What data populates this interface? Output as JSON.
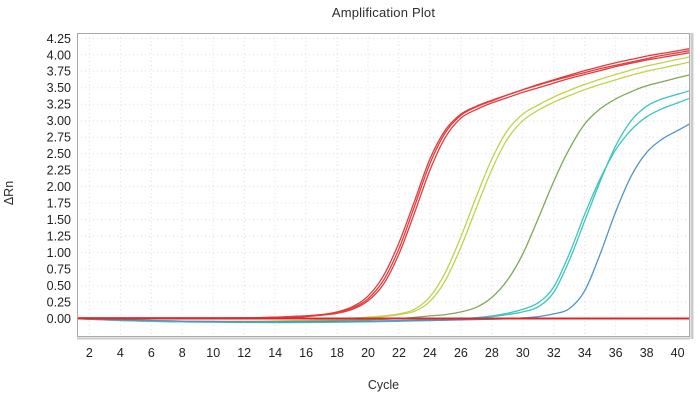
{
  "page": {
    "background": "#ffffff"
  },
  "chart_data": {
    "type": "line",
    "title": "Amplification Plot",
    "xlabel": "Cycle",
    "ylabel": "ΔRn",
    "xlim": [
      1.2,
      40.8
    ],
    "ylim": [
      -0.28,
      4.33
    ],
    "grid": "dotted",
    "legend": "none",
    "x_ticks": [
      2,
      4,
      6,
      8,
      10,
      12,
      14,
      16,
      18,
      20,
      22,
      24,
      26,
      28,
      30,
      32,
      34,
      36,
      38,
      40
    ],
    "y_tick_labels": [
      "4.25",
      "4.00",
      "3.75",
      "3.50",
      "3.25",
      "3.00",
      "2.75",
      "2.50",
      "2.25",
      "2.00",
      "1.75",
      "1.50",
      "1.25",
      "1.00",
      "0.75",
      "0.50",
      "0.25",
      "0.00"
    ],
    "colors": {
      "red": "#e23b3e",
      "lime": "#c0d34c",
      "olive": "#7ea856",
      "teal": "#3cc5c0",
      "blue": "#5093cc",
      "ntc_red": "#e0252a",
      "grid": "#dedede",
      "border": "#a8a8a8",
      "border_accent": "#cbcbcb",
      "text": "#222222"
    },
    "series": [
      {
        "name": "lime-replicate-1",
        "color_key": "lime",
        "width": 1.3,
        "points": [
          [
            1,
            0.0
          ],
          [
            4,
            -0.02
          ],
          [
            8,
            -0.04
          ],
          [
            12,
            -0.04
          ],
          [
            16,
            -0.03
          ],
          [
            18,
            -0.01
          ],
          [
            20,
            0.02
          ],
          [
            21,
            0.04
          ],
          [
            22,
            0.07
          ],
          [
            23,
            0.14
          ],
          [
            24,
            0.33
          ],
          [
            25,
            0.7
          ],
          [
            26,
            1.24
          ],
          [
            27,
            1.85
          ],
          [
            28,
            2.42
          ],
          [
            29,
            2.85
          ],
          [
            30,
            3.1
          ],
          [
            31,
            3.24
          ],
          [
            32,
            3.36
          ],
          [
            33,
            3.46
          ],
          [
            34,
            3.55
          ],
          [
            35,
            3.63
          ],
          [
            36,
            3.7
          ],
          [
            37,
            3.77
          ],
          [
            38,
            3.83
          ],
          [
            39,
            3.88
          ],
          [
            40,
            3.93
          ]
        ]
      },
      {
        "name": "lime-replicate-2",
        "color_key": "lime",
        "width": 1.3,
        "points": [
          [
            1,
            0.0
          ],
          [
            4,
            -0.02
          ],
          [
            8,
            -0.05
          ],
          [
            12,
            -0.05
          ],
          [
            16,
            -0.04
          ],
          [
            18,
            -0.02
          ],
          [
            20,
            0.01
          ],
          [
            21,
            0.03
          ],
          [
            22,
            0.06
          ],
          [
            23,
            0.11
          ],
          [
            24,
            0.26
          ],
          [
            25,
            0.58
          ],
          [
            26,
            1.08
          ],
          [
            27,
            1.68
          ],
          [
            28,
            2.26
          ],
          [
            29,
            2.72
          ],
          [
            30,
            3.0
          ],
          [
            31,
            3.16
          ],
          [
            32,
            3.28
          ],
          [
            33,
            3.38
          ],
          [
            34,
            3.47
          ],
          [
            35,
            3.55
          ],
          [
            36,
            3.62
          ],
          [
            37,
            3.69
          ],
          [
            38,
            3.75
          ],
          [
            39,
            3.8
          ],
          [
            40,
            3.85
          ]
        ]
      },
      {
        "name": "olive-replicate-1",
        "color_key": "olive",
        "width": 1.3,
        "points": [
          [
            1,
            0.0
          ],
          [
            4,
            -0.03
          ],
          [
            8,
            -0.05
          ],
          [
            12,
            -0.05
          ],
          [
            16,
            -0.04
          ],
          [
            20,
            -0.02
          ],
          [
            22,
            0.0
          ],
          [
            24,
            0.04
          ],
          [
            25,
            0.06
          ],
          [
            26,
            0.1
          ],
          [
            27,
            0.17
          ],
          [
            28,
            0.32
          ],
          [
            29,
            0.58
          ],
          [
            30,
            0.98
          ],
          [
            31,
            1.52
          ],
          [
            32,
            2.08
          ],
          [
            33,
            2.57
          ],
          [
            34,
            2.95
          ],
          [
            35,
            3.18
          ],
          [
            36,
            3.33
          ],
          [
            37,
            3.44
          ],
          [
            38,
            3.53
          ],
          [
            39,
            3.59
          ],
          [
            40,
            3.65
          ]
        ]
      },
      {
        "name": "teal-replicate-1",
        "color_key": "teal",
        "width": 1.3,
        "points": [
          [
            1,
            0.0
          ],
          [
            4,
            -0.02
          ],
          [
            8,
            -0.04
          ],
          [
            12,
            -0.05
          ],
          [
            16,
            -0.05
          ],
          [
            20,
            -0.04
          ],
          [
            24,
            -0.02
          ],
          [
            26,
            0.0
          ],
          [
            28,
            0.03
          ],
          [
            29,
            0.06
          ],
          [
            30,
            0.1
          ],
          [
            31,
            0.18
          ],
          [
            32,
            0.4
          ],
          [
            33,
            0.88
          ],
          [
            34,
            1.48
          ],
          [
            35,
            2.08
          ],
          [
            36,
            2.62
          ],
          [
            37,
            3.0
          ],
          [
            38,
            3.22
          ],
          [
            39,
            3.33
          ],
          [
            40,
            3.4
          ]
        ]
      },
      {
        "name": "teal-replicate-2",
        "color_key": "teal",
        "width": 1.3,
        "points": [
          [
            1,
            0.0
          ],
          [
            4,
            -0.03
          ],
          [
            8,
            -0.05
          ],
          [
            12,
            -0.06
          ],
          [
            16,
            -0.06
          ],
          [
            20,
            -0.05
          ],
          [
            24,
            -0.03
          ],
          [
            26,
            -0.01
          ],
          [
            28,
            0.04
          ],
          [
            29,
            0.08
          ],
          [
            30,
            0.14
          ],
          [
            31,
            0.24
          ],
          [
            32,
            0.48
          ],
          [
            33,
            0.98
          ],
          [
            34,
            1.58
          ],
          [
            35,
            2.12
          ],
          [
            36,
            2.56
          ],
          [
            37,
            2.86
          ],
          [
            38,
            3.06
          ],
          [
            39,
            3.18
          ],
          [
            40,
            3.27
          ]
        ]
      },
      {
        "name": "blue-replicate-1",
        "color_key": "blue",
        "width": 1.3,
        "points": [
          [
            1,
            0.0
          ],
          [
            4,
            -0.02
          ],
          [
            8,
            -0.04
          ],
          [
            12,
            -0.05
          ],
          [
            16,
            -0.05
          ],
          [
            20,
            -0.04
          ],
          [
            24,
            -0.03
          ],
          [
            28,
            -0.01
          ],
          [
            30,
            0.01
          ],
          [
            31,
            0.03
          ],
          [
            32,
            0.07
          ],
          [
            33,
            0.15
          ],
          [
            34,
            0.42
          ],
          [
            35,
            0.98
          ],
          [
            36,
            1.62
          ],
          [
            37,
            2.16
          ],
          [
            38,
            2.52
          ],
          [
            39,
            2.72
          ],
          [
            40,
            2.85
          ]
        ]
      },
      {
        "name": "red-replicate-1",
        "color_key": "red",
        "width": 1.3,
        "points": [
          [
            1,
            0.01
          ],
          [
            4,
            0.01
          ],
          [
            8,
            0.01
          ],
          [
            12,
            0.01
          ],
          [
            14,
            0.02
          ],
          [
            16,
            0.04
          ],
          [
            17,
            0.06
          ],
          [
            18,
            0.1
          ],
          [
            19,
            0.18
          ],
          [
            20,
            0.34
          ],
          [
            21,
            0.65
          ],
          [
            22,
            1.15
          ],
          [
            23,
            1.78
          ],
          [
            24,
            2.42
          ],
          [
            25,
            2.86
          ],
          [
            26,
            3.1
          ],
          [
            27,
            3.22
          ],
          [
            28,
            3.31
          ],
          [
            29,
            3.39
          ],
          [
            30,
            3.47
          ],
          [
            31,
            3.54
          ],
          [
            32,
            3.61
          ],
          [
            33,
            3.67
          ],
          [
            34,
            3.73
          ],
          [
            35,
            3.79
          ],
          [
            36,
            3.84
          ],
          [
            37,
            3.89
          ],
          [
            38,
            3.94
          ],
          [
            39,
            3.99
          ],
          [
            40,
            4.03
          ]
        ]
      },
      {
        "name": "red-replicate-2",
        "color_key": "red",
        "width": 1.3,
        "points": [
          [
            1,
            0.0
          ],
          [
            8,
            0.0
          ],
          [
            12,
            0.01
          ],
          [
            14,
            0.01
          ],
          [
            16,
            0.03
          ],
          [
            17,
            0.05
          ],
          [
            18,
            0.08
          ],
          [
            19,
            0.14
          ],
          [
            20,
            0.27
          ],
          [
            21,
            0.52
          ],
          [
            22,
            0.98
          ],
          [
            23,
            1.6
          ],
          [
            24,
            2.25
          ],
          [
            25,
            2.75
          ],
          [
            26,
            3.04
          ],
          [
            27,
            3.17
          ],
          [
            28,
            3.27
          ],
          [
            29,
            3.35
          ],
          [
            30,
            3.43
          ],
          [
            31,
            3.5
          ],
          [
            32,
            3.57
          ],
          [
            33,
            3.64
          ],
          [
            34,
            3.7
          ],
          [
            35,
            3.76
          ],
          [
            36,
            3.82
          ],
          [
            37,
            3.87
          ],
          [
            38,
            3.92
          ],
          [
            39,
            3.96
          ],
          [
            40,
            4.0
          ]
        ]
      },
      {
        "name": "red-replicate-3",
        "color_key": "red",
        "width": 1.3,
        "points": [
          [
            1,
            0.01
          ],
          [
            8,
            0.01
          ],
          [
            12,
            0.01
          ],
          [
            14,
            0.02
          ],
          [
            16,
            0.04
          ],
          [
            17,
            0.06
          ],
          [
            18,
            0.09
          ],
          [
            19,
            0.16
          ],
          [
            20,
            0.3
          ],
          [
            21,
            0.58
          ],
          [
            22,
            1.06
          ],
          [
            23,
            1.7
          ],
          [
            24,
            2.35
          ],
          [
            25,
            2.82
          ],
          [
            26,
            3.08
          ],
          [
            27,
            3.21
          ],
          [
            28,
            3.3
          ],
          [
            29,
            3.39
          ],
          [
            30,
            3.47
          ],
          [
            31,
            3.55
          ],
          [
            32,
            3.62
          ],
          [
            33,
            3.69
          ],
          [
            34,
            3.76
          ],
          [
            35,
            3.82
          ],
          [
            36,
            3.88
          ],
          [
            37,
            3.93
          ],
          [
            38,
            3.98
          ],
          [
            39,
            4.02
          ],
          [
            40,
            4.06
          ]
        ]
      },
      {
        "name": "ntc-baseline",
        "color_key": "ntc_red",
        "width": 2,
        "flat": true,
        "points": [
          [
            1.2,
            0.0
          ],
          [
            40.8,
            0.0
          ]
        ]
      }
    ]
  }
}
